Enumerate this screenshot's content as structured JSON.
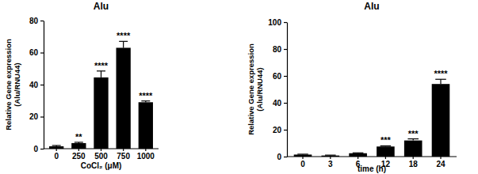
{
  "chart_data": [
    {
      "type": "bar",
      "title": "Alu",
      "xlabel": "CoCl₂ (μM)",
      "ylabel": [
        "Relative Gene expression",
        "(Alu/RNU44)"
      ],
      "categories": [
        "0",
        "250",
        "500",
        "750",
        "1000"
      ],
      "values": [
        1.5,
        3.5,
        44.5,
        63,
        29
      ],
      "errors": [
        0.5,
        0.5,
        4,
        4,
        0.8
      ],
      "significance": [
        null,
        "**",
        "****",
        "****",
        "****"
      ],
      "color": "#000000",
      "ylim": [
        0,
        80
      ],
      "yticks": [
        0,
        20,
        40,
        60,
        80
      ]
    },
    {
      "type": "bar",
      "title": "Alu",
      "xlabel": "time (h)",
      "ylabel": [
        "Relative Gene expression",
        "(Alu/RNU44)"
      ],
      "categories": [
        "0",
        "3",
        "6",
        "12",
        "18",
        "24"
      ],
      "values": [
        1.5,
        0.8,
        2.5,
        7.5,
        12,
        54
      ],
      "errors": [
        0.3,
        0.3,
        0.3,
        0.5,
        1.2,
        3.5
      ],
      "significance": [
        null,
        null,
        null,
        "***",
        "***",
        "****"
      ],
      "color": "#000000",
      "ylim": [
        0,
        100
      ],
      "yticks": [
        0,
        20,
        40,
        60,
        80,
        100
      ]
    }
  ]
}
